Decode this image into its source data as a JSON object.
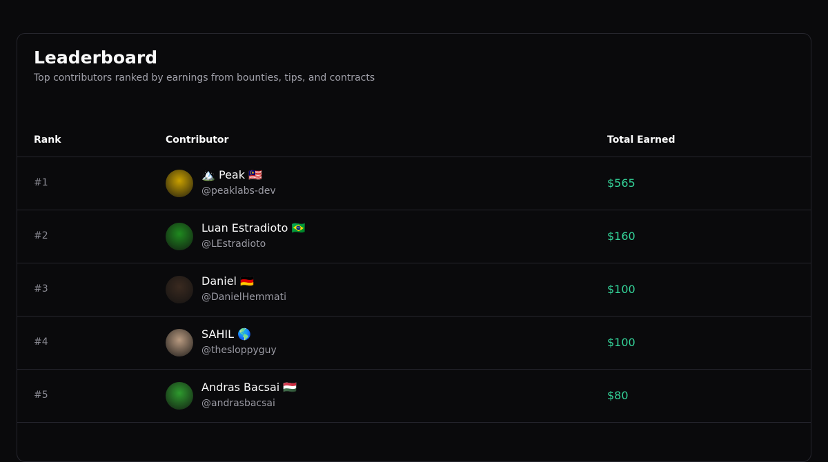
{
  "header": {
    "title": "Leaderboard",
    "subtitle": "Top contributors ranked by earnings from bounties, tips, and contracts"
  },
  "table": {
    "columns": [
      "Rank",
      "Contributor",
      "Total Earned"
    ],
    "rows": [
      {
        "rank": "#1",
        "name": "🏔️ Peak 🇲🇾",
        "handle": "@peaklabs-dev",
        "earned": "$565",
        "avatar_color": "#c9a000"
      },
      {
        "rank": "#2",
        "name": "Luan Estradioto 🇧🇷",
        "handle": "@LEstradioto",
        "earned": "$160",
        "avatar_color": "#1f8a1f"
      },
      {
        "rank": "#3",
        "name": "Daniel 🇩🇪",
        "handle": "@DanielHemmati",
        "earned": "$100",
        "avatar_color": "#3a2a20"
      },
      {
        "rank": "#4",
        "name": "SAHIL 🌎",
        "handle": "@thesloppyguy",
        "earned": "$100",
        "avatar_color": "#b89a80"
      },
      {
        "rank": "#5",
        "name": "Andras Bacsai 🇭🇺",
        "handle": "@andrasbacsai",
        "earned": "$80",
        "avatar_color": "#2e9a2e"
      }
    ]
  },
  "colors": {
    "accent": "#34d399",
    "background": "#0a0a0c",
    "border": "#26262e"
  }
}
